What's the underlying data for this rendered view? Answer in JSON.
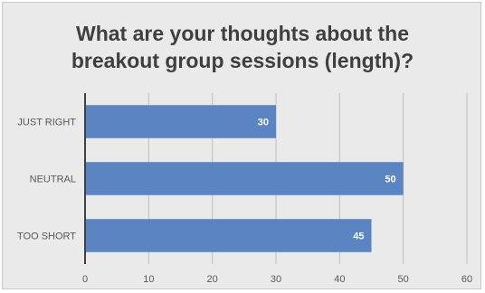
{
  "chart_data": {
    "type": "bar",
    "orientation": "horizontal",
    "title_lines": [
      "What are your thoughts about the",
      "breakout group sessions (length)?"
    ],
    "categories": [
      "JUST RIGHT",
      "NEUTRAL",
      "TOO SHORT"
    ],
    "values": [
      30,
      50,
      45
    ],
    "xlim": [
      0,
      60
    ],
    "xticks": [
      0,
      10,
      20,
      30,
      40,
      50,
      60
    ],
    "xlabel": "",
    "ylabel": "",
    "grid": "vertical",
    "bar_color": "#5b84c2",
    "data_labels": true
  }
}
